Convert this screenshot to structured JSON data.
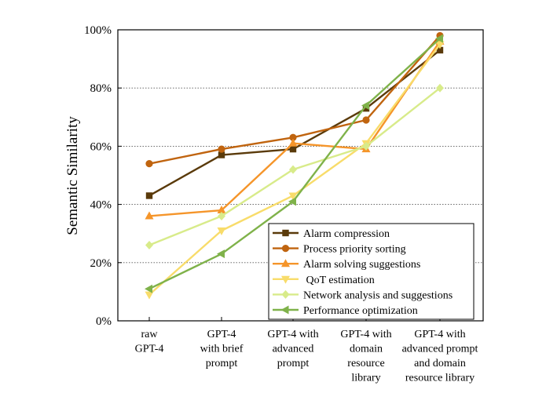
{
  "chart_data": {
    "type": "line",
    "title": "",
    "xlabel": "",
    "ylabel": "Semantic Similarity",
    "ylim": [
      0,
      100
    ],
    "yticks": [
      0,
      20,
      40,
      60,
      80,
      100
    ],
    "ytick_labels": [
      "0%",
      "20%",
      "40%",
      "60%",
      "80%",
      "100%"
    ],
    "grid": "horizontal dotted",
    "legend_position": "bottom-right",
    "categories": [
      [
        "raw",
        "GPT-4"
      ],
      [
        "GPT-4",
        "with brief",
        "prompt"
      ],
      [
        "GPT-4 with",
        "advanced",
        "prompt"
      ],
      [
        "GPT-4 with",
        "domain",
        "resource",
        "library"
      ],
      [
        "GPT-4 with",
        "advanced prompt",
        "and domain",
        "resource library"
      ]
    ],
    "series": [
      {
        "name": "Alarm compression",
        "color": "#5a3a0a",
        "marker": "square",
        "values": [
          43,
          57,
          59,
          73,
          93
        ]
      },
      {
        "name": "Process priority sorting",
        "color": "#c0640f",
        "marker": "circle",
        "values": [
          54,
          59,
          63,
          69,
          98
        ]
      },
      {
        "name": "Alarm solving suggestions",
        "color": "#f5952a",
        "marker": "triangle-up",
        "values": [
          36,
          38,
          61,
          59,
          96
        ]
      },
      {
        "name": " QoT estimation",
        "color": "#f8dc6a",
        "marker": "triangle-down",
        "values": [
          9,
          31,
          43,
          61,
          95
        ]
      },
      {
        "name": "Network analysis and suggestions",
        "color": "#d8eb8a",
        "marker": "diamond",
        "values": [
          26,
          36,
          52,
          60,
          80
        ]
      },
      {
        "name": "Performance optimization",
        "color": "#7fb24a",
        "marker": "triangle-left",
        "values": [
          11,
          23,
          41,
          74,
          97
        ]
      }
    ]
  }
}
